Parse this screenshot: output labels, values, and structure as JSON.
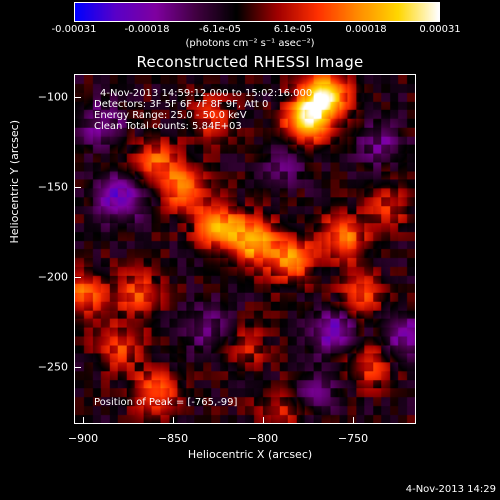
{
  "colorbar": {
    "tick_labels": [
      "-0.00031",
      "-0.00018",
      "-6.1e-05",
      "6.1e-05",
      "0.00018",
      "0.00031"
    ],
    "units": "(photons cm⁻² s⁻¹ asec⁻²)",
    "range": [
      -0.00031,
      0.00031
    ],
    "stops": [
      "#0000ff",
      "#5a00c8",
      "#8000a0",
      "#400040",
      "#000000",
      "#a00000",
      "#ff3000",
      "#ff8c00",
      "#ffd700",
      "#ffffff"
    ]
  },
  "annotations": {
    "time_range": "4-Nov-2013 14:59:12.000 to 15:02:16.000",
    "detectors": "Detectors: 3F 5F 6F 7F 8F 9F, Att 0",
    "energy": "Energy Range: 25.0 - 50.0 keV",
    "clean": "Clean     Total counts: 5.84E+03",
    "peak": "Position of Peak = [-765,-99]"
  },
  "footer": {
    "timestamp": "4-Nov-2013 14:29"
  },
  "chart_data": {
    "type": "heatmap",
    "title": "Reconstructed RHESSI Image",
    "xlabel": "Heliocentric X (arcsec)",
    "ylabel": "Heliocentric Y (arcsec)",
    "xlim": [
      -905,
      -715
    ],
    "ylim": [
      -282,
      -87
    ],
    "x_ticks": [
      -900,
      -850,
      -800,
      -750
    ],
    "y_ticks": [
      -100,
      -150,
      -200,
      -250
    ],
    "peak": [
      -765,
      -99
    ],
    "hotspots": [
      {
        "x": -765,
        "y": -99,
        "value": 0.00031
      },
      {
        "x": -775,
        "y": -112,
        "value": 0.00027
      },
      {
        "x": -805,
        "y": -180,
        "value": 0.00024
      },
      {
        "x": -825,
        "y": -172,
        "value": 0.00022
      },
      {
        "x": -785,
        "y": -190,
        "value": 0.0002
      },
      {
        "x": -755,
        "y": -178,
        "value": 0.00019
      },
      {
        "x": -845,
        "y": -150,
        "value": 0.00018
      },
      {
        "x": -860,
        "y": -135,
        "value": 0.00016
      },
      {
        "x": -870,
        "y": -210,
        "value": 0.00015
      },
      {
        "x": -900,
        "y": -210,
        "value": 0.00017
      },
      {
        "x": -880,
        "y": -240,
        "value": 0.00013
      },
      {
        "x": -860,
        "y": -265,
        "value": 0.00018
      },
      {
        "x": -745,
        "y": -210,
        "value": 0.00014
      },
      {
        "x": -740,
        "y": -250,
        "value": 0.00012
      },
      {
        "x": -730,
        "y": -160,
        "value": 0.00011
      },
      {
        "x": -810,
        "y": -240,
        "value": 0.0001
      },
      {
        "x": -790,
        "y": -275,
        "value": 9e-05
      },
      {
        "x": -830,
        "y": -110,
        "value": 0.00012
      }
    ],
    "lows": [
      {
        "x": -880,
        "y": -155,
        "value": -0.00018
      },
      {
        "x": -890,
        "y": -115,
        "value": -0.00012
      },
      {
        "x": -760,
        "y": -230,
        "value": -0.00016
      },
      {
        "x": -720,
        "y": -235,
        "value": -0.00014
      },
      {
        "x": -830,
        "y": -230,
        "value": -0.0001
      },
      {
        "x": -790,
        "y": -140,
        "value": -8e-05
      },
      {
        "x": -735,
        "y": -125,
        "value": -0.0001
      },
      {
        "x": -770,
        "y": -265,
        "value": -9e-05
      }
    ]
  }
}
